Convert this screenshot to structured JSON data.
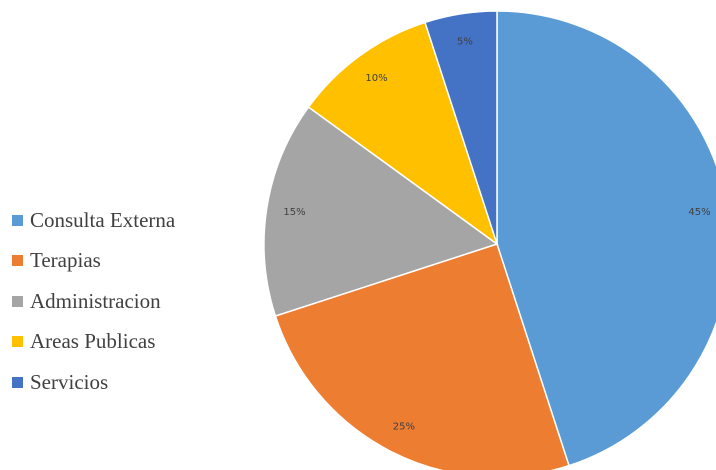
{
  "chart_data": {
    "type": "pie",
    "categories": [
      "Consulta Externa",
      "Terapias",
      "Administracion",
      "Areas Publicas",
      "Servicios"
    ],
    "values": [
      45,
      25,
      15,
      10,
      5
    ],
    "labels": [
      "45%",
      "25%",
      "15%",
      "10%",
      "5%"
    ],
    "colors": [
      "#5B9BD5",
      "#ED7D31",
      "#A5A5A5",
      "#FFC000",
      "#4472C4"
    ],
    "legend": "left",
    "start_angle": "12 o'clock",
    "direction": "clockwise"
  }
}
